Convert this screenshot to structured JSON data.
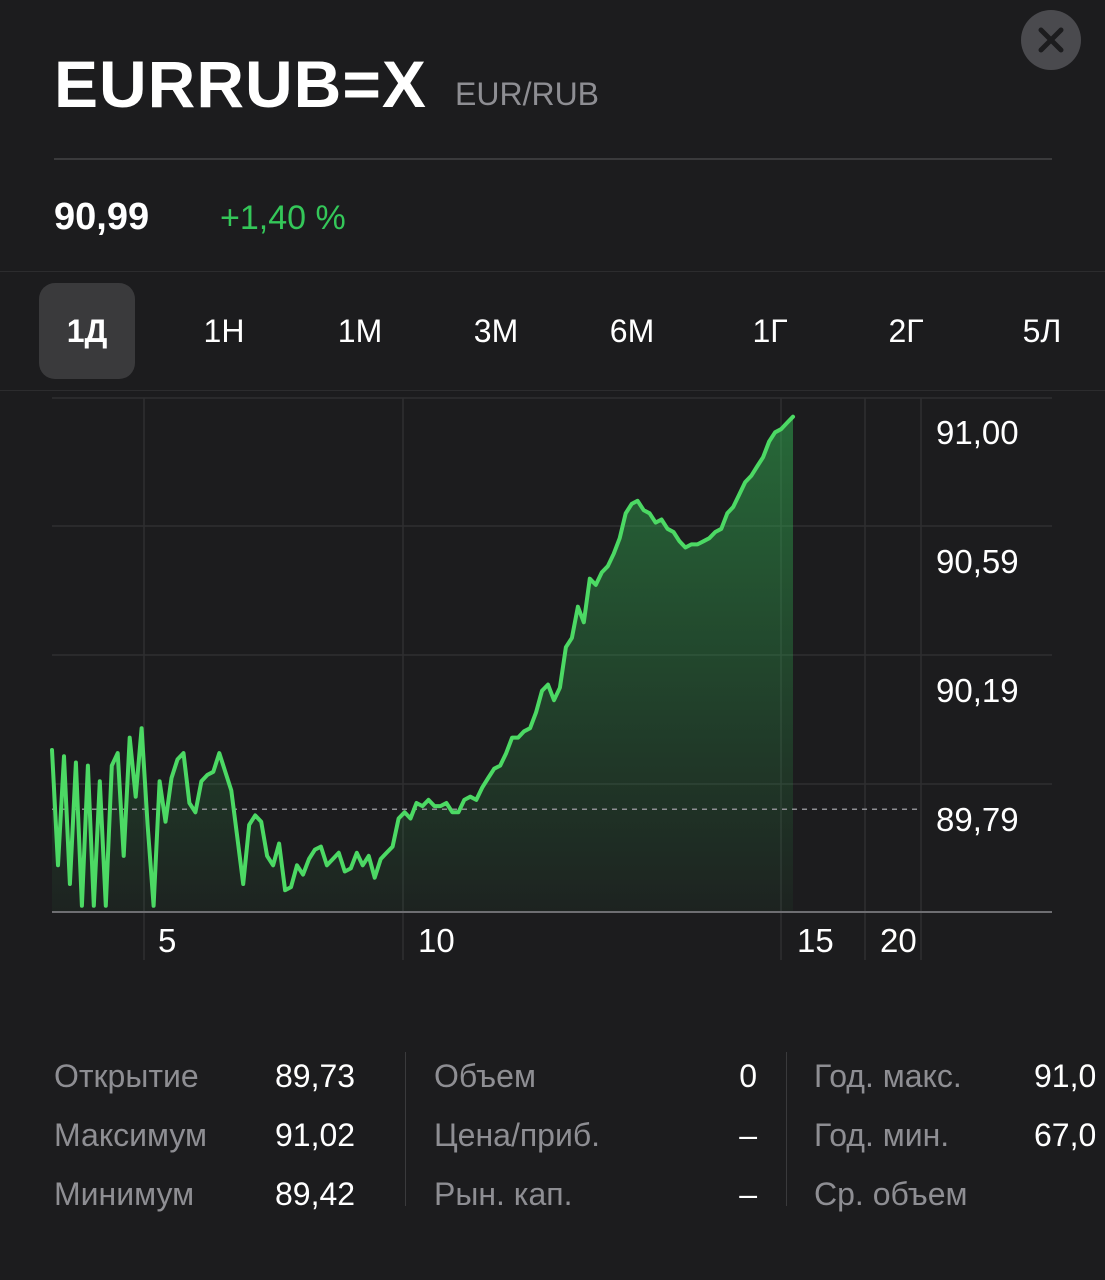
{
  "header": {
    "ticker": "EURRUB=X",
    "name": "EUR/RUB",
    "close_icon": "close-icon"
  },
  "quote": {
    "price": "90,99",
    "change": "+1,40 %",
    "change_color": "#34c759"
  },
  "tabs": [
    {
      "label": "1Д",
      "active": true
    },
    {
      "label": "1Н",
      "active": false
    },
    {
      "label": "1М",
      "active": false
    },
    {
      "label": "3М",
      "active": false
    },
    {
      "label": "6М",
      "active": false
    },
    {
      "label": "1Г",
      "active": false
    },
    {
      "label": "2Г",
      "active": false
    },
    {
      "label": "5Л",
      "active": false
    }
  ],
  "chart_data": {
    "type": "area",
    "line_color": "#4cd964",
    "x_tick_labels": [
      "5",
      "10",
      "15",
      "20"
    ],
    "y_tick_labels": [
      "91,00",
      "90,59",
      "90,19",
      "89,79"
    ],
    "ylim": [
      89.4,
      91.05
    ],
    "previous_close": 89.73,
    "grid": true,
    "values": [
      89.92,
      89.55,
      89.9,
      89.49,
      89.88,
      89.42,
      89.87,
      89.42,
      89.82,
      89.42,
      89.87,
      89.91,
      89.58,
      89.96,
      89.77,
      89.99,
      89.68,
      89.42,
      89.82,
      89.69,
      89.83,
      89.89,
      89.91,
      89.75,
      89.72,
      89.82,
      89.84,
      89.85,
      89.91,
      89.85,
      89.79,
      89.64,
      89.49,
      89.68,
      89.71,
      89.69,
      89.58,
      89.55,
      89.62,
      89.47,
      89.48,
      89.55,
      89.52,
      89.57,
      89.6,
      89.61,
      89.55,
      89.57,
      89.59,
      89.53,
      89.54,
      89.59,
      89.55,
      89.58,
      89.51,
      89.57,
      89.59,
      89.61,
      89.7,
      89.72,
      89.7,
      89.75,
      89.74,
      89.76,
      89.74,
      89.74,
      89.75,
      89.72,
      89.72,
      89.76,
      89.77,
      89.76,
      89.8,
      89.83,
      89.86,
      89.87,
      89.91,
      89.96,
      89.96,
      89.98,
      89.99,
      90.04,
      90.11,
      90.13,
      90.08,
      90.12,
      90.25,
      90.28,
      90.38,
      90.33,
      90.47,
      90.45,
      90.49,
      90.51,
      90.55,
      90.6,
      90.68,
      90.71,
      90.72,
      90.69,
      90.68,
      90.65,
      90.66,
      90.63,
      90.62,
      90.59,
      90.57,
      90.58,
      90.58,
      90.59,
      90.6,
      90.62,
      90.63,
      90.68,
      90.7,
      90.74,
      90.78,
      90.8,
      90.83,
      90.86,
      90.91,
      90.94,
      90.95,
      90.97,
      90.99
    ]
  },
  "stats": {
    "col1": [
      {
        "label": "Открытие",
        "value": "89,73"
      },
      {
        "label": "Максимум",
        "value": "91,02"
      },
      {
        "label": "Минимум",
        "value": "89,42"
      }
    ],
    "col2": [
      {
        "label": "Объем",
        "value": "0"
      },
      {
        "label": "Цена/приб.",
        "value": "–"
      },
      {
        "label": "Рын. кап.",
        "value": "–"
      }
    ],
    "col3": [
      {
        "label": "Год. макс.",
        "value": "91,0"
      },
      {
        "label": "Год. мин.",
        "value": "67,0"
      },
      {
        "label": "Ср. объем",
        "value": ""
      }
    ]
  }
}
